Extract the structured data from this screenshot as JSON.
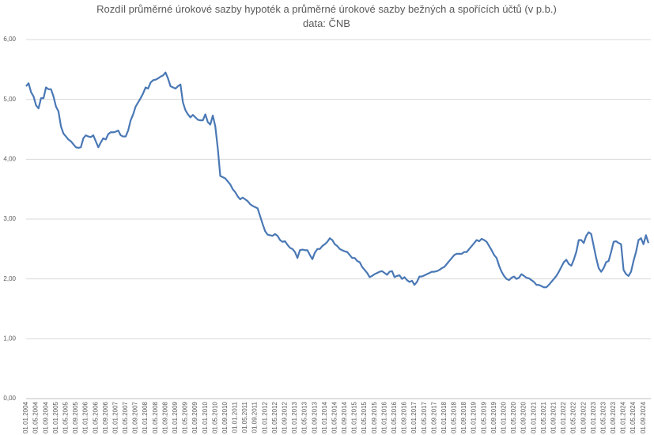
{
  "chart_data": {
    "type": "line",
    "title": "Rozdíl průměrné úrokové sazby hypoték a průměrné úrokové sazby bežných a spořících účtů (v p.b.)",
    "subtitle": "data: ČNB",
    "categories": [
      "01.01.2004",
      null,
      null,
      null,
      "01.05.2004",
      null,
      null,
      null,
      "01.09.2004",
      null,
      null,
      null,
      "01.01.2005",
      null,
      null,
      null,
      "01.05.2005",
      null,
      null,
      null,
      "01.09.2005",
      null,
      null,
      null,
      "01.01.2006",
      null,
      null,
      null,
      "01.05.2006",
      null,
      null,
      null,
      "01.09.2006",
      null,
      null,
      null,
      "01.01.2007",
      null,
      null,
      null,
      "01.05.2007",
      null,
      null,
      null,
      "01.09.2007",
      null,
      null,
      null,
      "01.01.2008",
      null,
      null,
      null,
      "01.05.2008",
      null,
      null,
      null,
      "01.09.2008",
      null,
      null,
      null,
      "01.01.2009",
      null,
      null,
      null,
      "01.05.2009",
      null,
      null,
      null,
      "01.09.2009",
      null,
      null,
      null,
      "01.01.2010",
      null,
      null,
      null,
      "01.05.2010",
      null,
      null,
      null,
      "01.09.2010",
      null,
      null,
      null,
      "01.01.2011",
      null,
      null,
      null,
      "01.05.2011",
      null,
      null,
      null,
      "01.09.2011",
      null,
      null,
      null,
      "01.01.2012",
      null,
      null,
      null,
      "01.05.2012",
      null,
      null,
      null,
      "01.09.2012",
      null,
      null,
      null,
      "01.01.2013",
      null,
      null,
      null,
      "01.05.2013",
      null,
      null,
      null,
      "01.09.2013",
      null,
      null,
      null,
      "01.01.2014",
      null,
      null,
      null,
      "01.05.2014",
      null,
      null,
      null,
      "01.09.2014",
      null,
      null,
      null,
      "01.01.2015",
      null,
      null,
      null,
      "01.05.2015",
      null,
      null,
      null,
      "01.09.2015",
      null,
      null,
      null,
      "01.01.2016",
      null,
      null,
      null,
      "01.05.2016",
      null,
      null,
      null,
      "01.09.2016",
      null,
      null,
      null,
      "01.01.2017",
      null,
      null,
      null,
      "01.05.2017",
      null,
      null,
      null,
      "01.09.2017",
      null,
      null,
      null,
      "01.01.2018",
      null,
      null,
      null,
      "01.05.2018",
      null,
      null,
      null,
      "01.09.2018",
      null,
      null,
      null,
      "01.01.2019",
      null,
      null,
      null,
      "01.05.2019",
      null,
      null,
      null,
      "01.09.2019",
      null,
      null,
      null,
      "01.01.2020",
      null,
      null,
      null,
      "01.05.2020",
      null,
      null,
      null,
      "01.09.2020",
      null,
      null,
      null,
      "01.01.2021",
      null,
      null,
      null,
      "01.05.2021",
      null,
      null,
      null,
      "01.09.2021",
      null,
      null,
      null,
      "01.01.2022",
      null,
      null,
      null,
      "01.05.2022",
      null,
      null,
      null,
      "01.09.2022",
      null,
      null,
      null,
      "01.01.2023",
      null,
      null,
      null,
      "01.05.2023",
      null,
      null,
      null,
      "01.09.2023",
      null,
      null,
      null,
      "01.01.2024",
      null,
      null,
      null,
      "01.05.2024",
      null,
      null,
      null,
      "01.09.2024",
      null,
      null
    ],
    "series": [
      {
        "color": "#4a78b5",
        "values": [
          5.22,
          5.27,
          5.12,
          5.05,
          4.9,
          4.85,
          5.02,
          5.02,
          5.2,
          5.17,
          5.17,
          5.05,
          4.88,
          4.8,
          4.55,
          4.43,
          4.38,
          4.33,
          4.3,
          4.25,
          4.2,
          4.19,
          4.2,
          4.35,
          4.4,
          4.38,
          4.37,
          4.4,
          4.3,
          4.2,
          4.28,
          4.35,
          4.33,
          4.42,
          4.45,
          4.45,
          4.46,
          4.48,
          4.4,
          4.38,
          4.38,
          4.48,
          4.65,
          4.75,
          4.88,
          4.95,
          5.02,
          5.1,
          5.2,
          5.18,
          5.28,
          5.32,
          5.33,
          5.35,
          5.38,
          5.4,
          5.45,
          5.35,
          5.22,
          5.2,
          5.18,
          5.22,
          5.25,
          4.95,
          4.82,
          4.75,
          4.7,
          4.74,
          4.7,
          4.66,
          4.65,
          4.65,
          4.75,
          4.62,
          4.58,
          4.73,
          4.55,
          4.18,
          3.72,
          3.7,
          3.68,
          3.63,
          3.58,
          3.5,
          3.45,
          3.38,
          3.33,
          3.36,
          3.33,
          3.3,
          3.25,
          3.22,
          3.2,
          3.18,
          3.05,
          2.92,
          2.8,
          2.74,
          2.73,
          2.72,
          2.75,
          2.72,
          2.65,
          2.62,
          2.63,
          2.57,
          2.52,
          2.5,
          2.45,
          2.35,
          2.48,
          2.49,
          2.48,
          2.48,
          2.4,
          2.33,
          2.44,
          2.5,
          2.5,
          2.55,
          2.58,
          2.62,
          2.68,
          2.65,
          2.58,
          2.55,
          2.5,
          2.48,
          2.46,
          2.45,
          2.4,
          2.35,
          2.35,
          2.3,
          2.28,
          2.2,
          2.15,
          2.1,
          2.03,
          2.05,
          2.08,
          2.1,
          2.12,
          2.13,
          2.1,
          2.07,
          2.12,
          2.13,
          2.03,
          2.05,
          2.06,
          2.0,
          2.03,
          1.98,
          1.95,
          1.97,
          1.9,
          1.95,
          2.04,
          2.04,
          2.06,
          2.08,
          2.1,
          2.12,
          2.12,
          2.13,
          2.15,
          2.18,
          2.2,
          2.25,
          2.3,
          2.35,
          2.4,
          2.42,
          2.42,
          2.42,
          2.45,
          2.45,
          2.5,
          2.55,
          2.6,
          2.65,
          2.63,
          2.67,
          2.65,
          2.62,
          2.55,
          2.48,
          2.4,
          2.35,
          2.22,
          2.12,
          2.05,
          2.0,
          1.98,
          2.02,
          2.04,
          2.0,
          2.02,
          2.08,
          2.05,
          2.02,
          2.01,
          1.98,
          1.95,
          1.9,
          1.9,
          1.88,
          1.86,
          1.86,
          1.9,
          1.95,
          2.0,
          2.05,
          2.12,
          2.2,
          2.28,
          2.32,
          2.25,
          2.22,
          2.32,
          2.45,
          2.65,
          2.65,
          2.6,
          2.72,
          2.78,
          2.75,
          2.55,
          2.35,
          2.18,
          2.12,
          2.18,
          2.28,
          2.3,
          2.45,
          2.62,
          2.63,
          2.6,
          2.58,
          2.15,
          2.08,
          2.05,
          2.12,
          2.3,
          2.45,
          2.65,
          2.68,
          2.58,
          2.73,
          2.6
        ]
      }
    ],
    "ylim": [
      0,
      6
    ],
    "yticks": [
      {
        "value": 0,
        "label": "0,00"
      },
      {
        "value": 1,
        "label": "1,00"
      },
      {
        "value": 2,
        "label": "2,00"
      },
      {
        "value": 3,
        "label": "3,00"
      },
      {
        "value": 4,
        "label": "4,00"
      },
      {
        "value": 5,
        "label": "5,00"
      },
      {
        "value": 6,
        "label": "6,00"
      }
    ],
    "grid": true
  }
}
